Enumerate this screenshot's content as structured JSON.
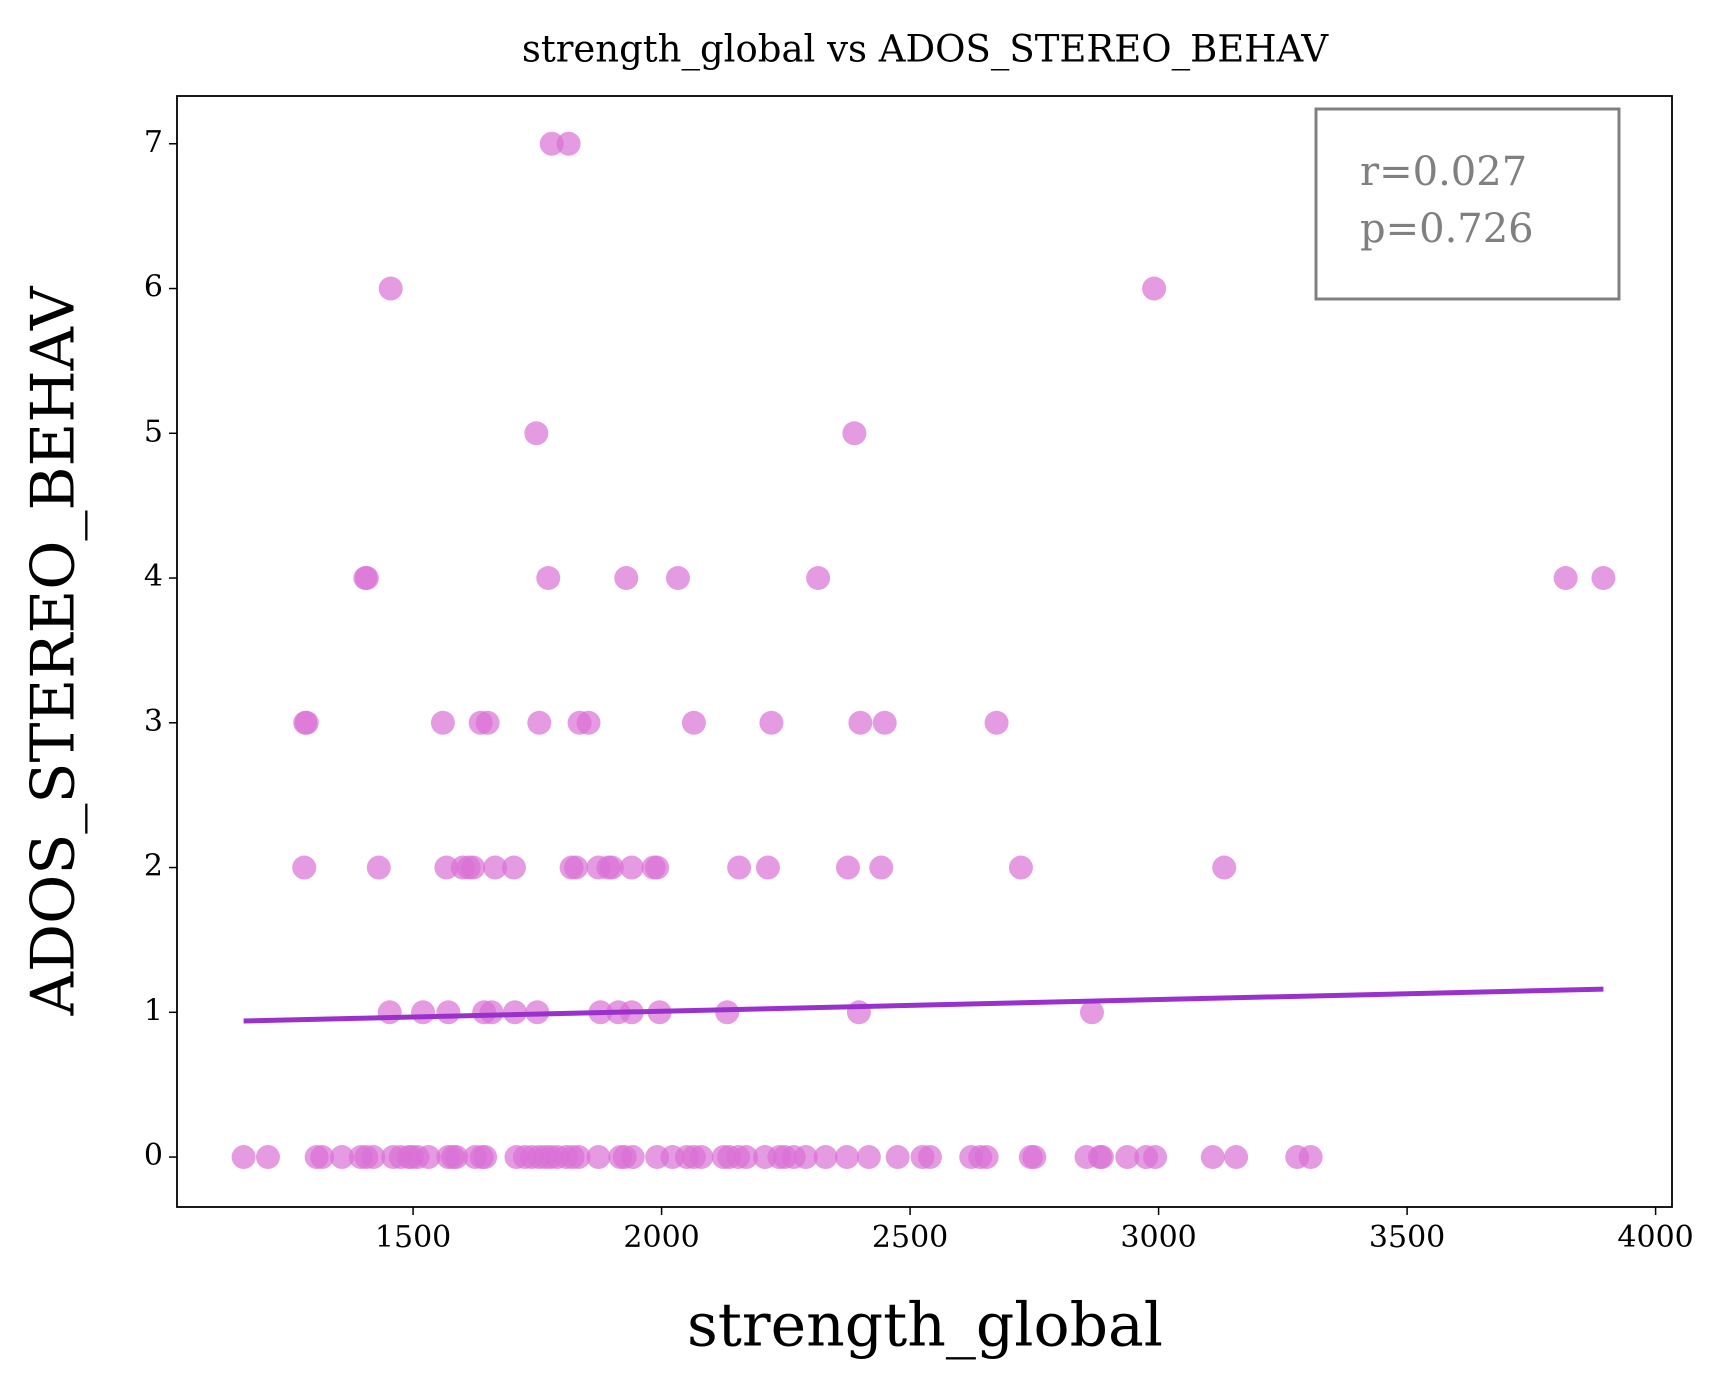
{
  "chart_data": {
    "type": "scatter",
    "title": "strength_global vs ADOS_STEREO_BEHAV",
    "x_label": "strength_global",
    "y_label": "ADOS_STEREO_BEHAV",
    "annotation": [
      "r=0.027",
      "p=0.726"
    ],
    "color": "#da70d6",
    "trend_color": "#9932cc",
    "x": [
      1779,
      1813,
      1455,
      2991,
      1748,
      2388,
      1404,
      1407,
      1772,
      1929,
      2033,
      2315,
      3819,
      3895,
      1283,
      1286,
      1560,
      1636,
      1650,
      1754,
      1835,
      1853,
      2065,
      2221,
      2400,
      2449,
      2674,
      1281,
      1431,
      1567,
      1600,
      1612,
      1621,
      1665,
      1703,
      1819,
      1828,
      1873,
      1893,
      1900,
      1940,
      1984,
      1991,
      2156,
      2214,
      2375,
      2442,
      2723,
      3132,
      1453,
      1520,
      1571,
      1643,
      1658,
      1705,
      1750,
      1877,
      1913,
      1940,
      1996,
      2132,
      2397,
      2866,
      1159,
      1208,
      1306,
      1317,
      1357,
      1395,
      1406,
      1420,
      1460,
      1475,
      1491,
      1498,
      1509,
      1531,
      1571,
      1580,
      1587,
      1625,
      1638,
      1645,
      1708,
      1725,
      1739,
      1754,
      1766,
      1777,
      1790,
      1808,
      1821,
      1833,
      1873,
      1917,
      1926,
      1942,
      1991,
      2022,
      2051,
      2065,
      2080,
      2125,
      2136,
      2154,
      2170,
      2208,
      2237,
      2248,
      2266,
      2290,
      2330,
      2373,
      2417,
      2475,
      2525,
      2540,
      2623,
      2641,
      2654,
      2743,
      2750,
      2855,
      2882,
      2886,
      2937,
      2975,
      2993,
      3109,
      3156,
      3279,
      3306
    ],
    "values": [
      7,
      7,
      6,
      6,
      5,
      5,
      4,
      4,
      4,
      4,
      4,
      4,
      4,
      4,
      3,
      3,
      3,
      3,
      3,
      3,
      3,
      3,
      3,
      3,
      3,
      3,
      3,
      2,
      2,
      2,
      2,
      2,
      2,
      2,
      2,
      2,
      2,
      2,
      2,
      2,
      2,
      2,
      2,
      2,
      2,
      2,
      2,
      2,
      2,
      1,
      1,
      1,
      1,
      1,
      1,
      1,
      1,
      1,
      1,
      1,
      1,
      1,
      1,
      0,
      0,
      0,
      0,
      0,
      0,
      0,
      0,
      0,
      0,
      0,
      0,
      0,
      0,
      0,
      0,
      0,
      0,
      0,
      0,
      0,
      0,
      0,
      0,
      0,
      0,
      0,
      0,
      0,
      0,
      0,
      0,
      0,
      0,
      0,
      0,
      0,
      0,
      0,
      0,
      0,
      0,
      0,
      0,
      0,
      0,
      0,
      0,
      0,
      0,
      0,
      0,
      0,
      0,
      0,
      0,
      0,
      0,
      0,
      0,
      0,
      0,
      0,
      0,
      0,
      0,
      0,
      0,
      0
    ],
    "trendline": {
      "x": [
        1159,
        3895
      ],
      "y": [
        0.94,
        1.16
      ]
    },
    "xlim": [
      1025,
      4033
    ],
    "ylim": [
      -0.345,
      7.33
    ],
    "xticks": [
      1500,
      2000,
      2500,
      3000,
      3500,
      4000
    ],
    "yticks": [
      0,
      1,
      2,
      3,
      4,
      5,
      6,
      7
    ]
  }
}
